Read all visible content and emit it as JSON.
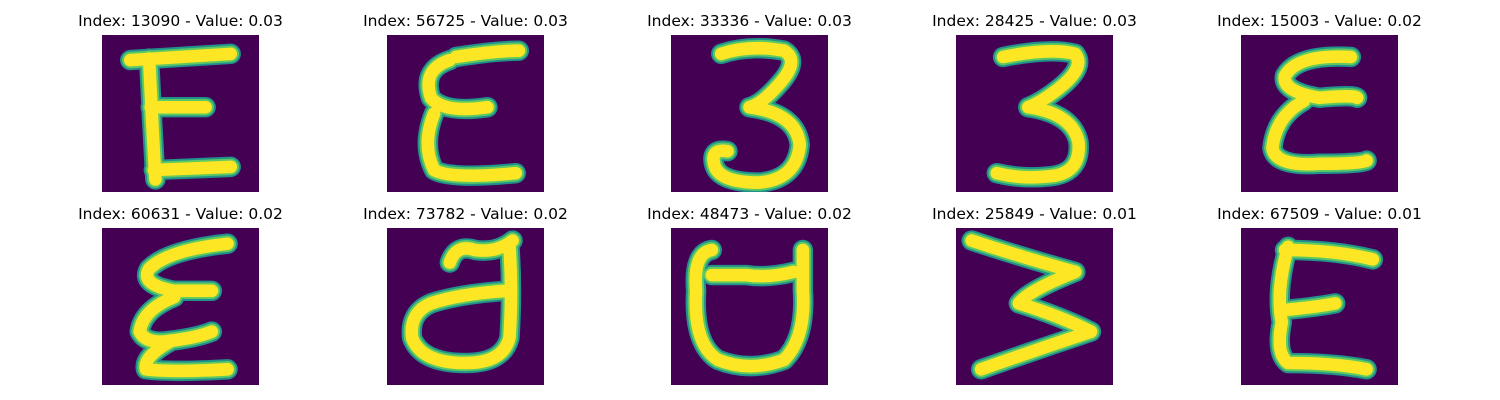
{
  "colors": {
    "background": "#440154",
    "stroke_core": "#fde725",
    "stroke_edge": "#21918c",
    "stroke_mid": "#5ec962"
  },
  "panels": [
    {
      "title": "Index: 13090 - Value: 0.03",
      "glyph": "E-serif"
    },
    {
      "title": "Index: 56725 - Value: 0.03",
      "glyph": "epsilon-E"
    },
    {
      "title": "Index: 33336 - Value: 0.03",
      "glyph": "three-round"
    },
    {
      "title": "Index: 28425 - Value: 0.03",
      "glyph": "three-flat"
    },
    {
      "title": "Index: 15003 - Value: 0.02",
      "glyph": "epsilon"
    },
    {
      "title": "Index: 60631 - Value: 0.02",
      "glyph": "epsilon-tall"
    },
    {
      "title": "Index: 73782 - Value: 0.02",
      "glyph": "d-like"
    },
    {
      "title": "Index: 48473 - Value: 0.02",
      "glyph": "u-like"
    },
    {
      "title": "Index: 25849 - Value: 0.01",
      "glyph": "sideways-m"
    },
    {
      "title": "Index: 67509 - Value: 0.01",
      "glyph": "E-plain"
    }
  ]
}
